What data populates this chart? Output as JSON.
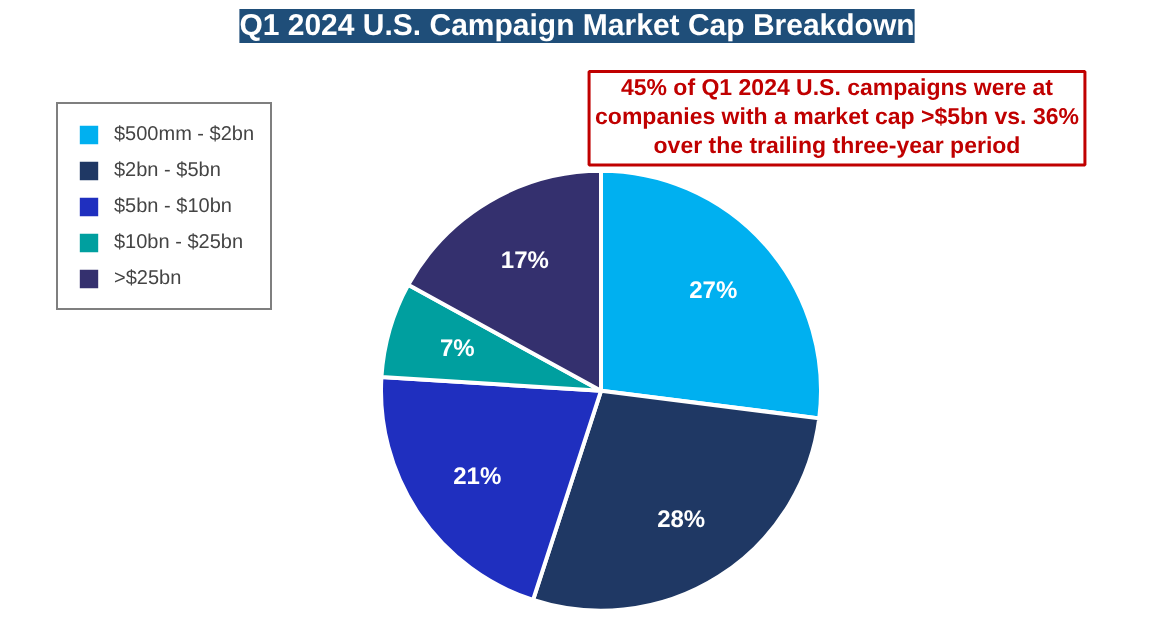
{
  "chart_data": {
    "type": "pie",
    "title": "Q1 2024 U.S. Campaign Market Cap Breakdown",
    "categories": [
      "$500mm - $2bn",
      "$2bn - $5bn",
      "$5bn - $10bn",
      "$10bn - $25bn",
      ">$25bn"
    ],
    "values": [
      27,
      28,
      21,
      7,
      17
    ],
    "colors": [
      "#00b0f0",
      "#1f3864",
      "#1f2fbf",
      "#009f9f",
      "#34306e"
    ],
    "value_labels": [
      "27%",
      "28%",
      "21%",
      "7%",
      "17%"
    ],
    "annotations": [
      "45% of Q1 2024 U.S. campaigns were at companies with a market cap >$5bn vs. 36% over the trailing three-year period"
    ],
    "legend": "top left"
  }
}
